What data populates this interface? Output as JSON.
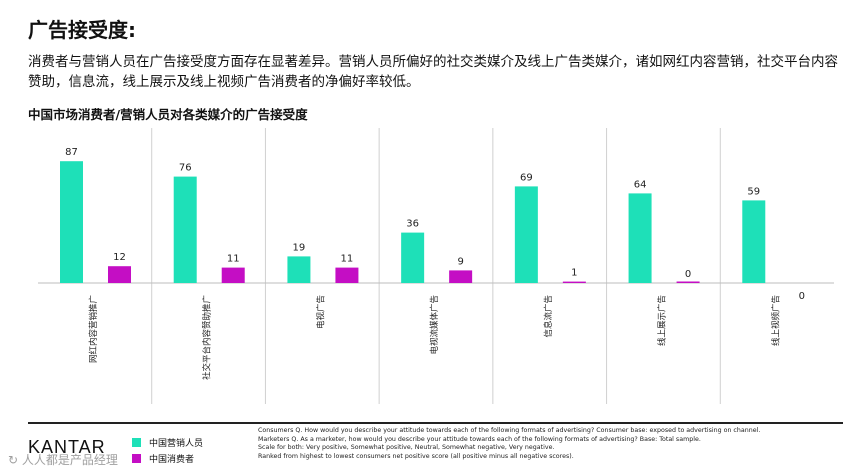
{
  "header": {
    "title": "广告接受度:",
    "subtitle": "消费者与营销人员在广告接受度方面存在显著差异。营销人员所偏好的社交类媒介及线上广告类媒介，诸如网红内容营销，社交平台内容赞助，信息流，线上展示及线上视频广告消费者的净偏好率较低。",
    "chart_title": "中国市场消费者/营销人员对各类媒介的广告接受度"
  },
  "chart_data": {
    "type": "bar",
    "title": "中国市场消费者/营销人员对各类媒介的广告接受度",
    "categories": [
      "网红内容营销推广",
      "社交平台内容赞助推广",
      "电视广告",
      "电视流媒体广告",
      "信息流广告",
      "线上展示广告",
      "线上视频广告"
    ],
    "series": [
      {
        "name": "中国营销人员",
        "values": [
          87,
          76,
          19,
          36,
          69,
          64,
          59
        ],
        "color": "#1ee0b8"
      },
      {
        "name": "中国消费者",
        "values": [
          12,
          11,
          11,
          9,
          1,
          0,
          0
        ],
        "color": "#c40ec4"
      }
    ],
    "ylim": [
      0,
      100
    ],
    "grid": false,
    "legend_position": "bottom-left"
  },
  "legend": {
    "marketers": "中国营销人员",
    "consumers": "中国消费者"
  },
  "footer": {
    "logo": "KANTAR",
    "notes": [
      "Consumers Q. How would you describe your attitude towards each of the following formats of advertising? Consumer base: exposed to advertising on channel.",
      "Marketers Q. As a marketer, how would you describe your attitude towards each of the following formats of advertising? Base: Total sample.",
      "Scale for both: Very positive, Somewhat positive, Neutral, Somewhat negative, Very negative.",
      "Ranked from highest to lowest consumers net positive score (all positive minus all negative scores)."
    ],
    "watermark": "↻ 人人都是产品经理"
  }
}
